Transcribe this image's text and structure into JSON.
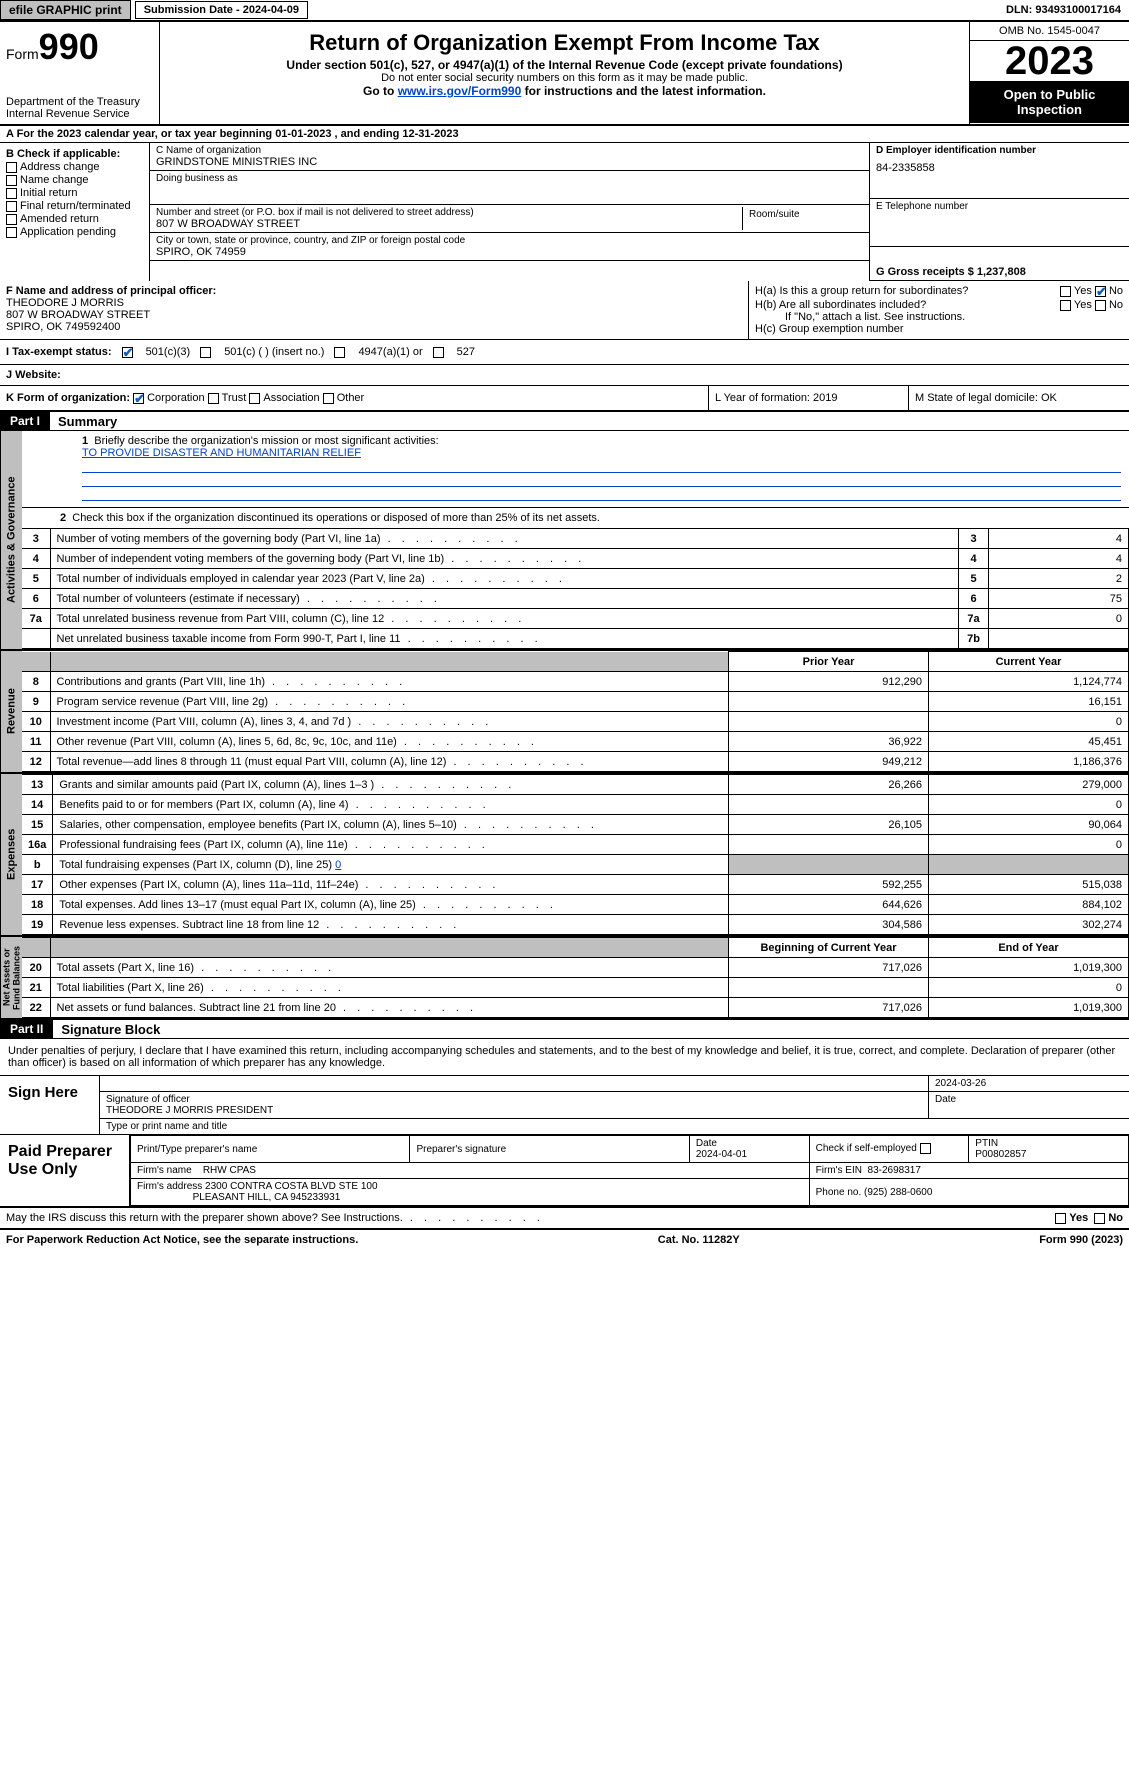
{
  "topbar": {
    "efile": "efile GRAPHIC print",
    "submission_label": "Submission Date - 2024-04-09",
    "dln": "DLN: 93493100017164"
  },
  "header": {
    "form_word": "Form",
    "form_num": "990",
    "dept": "Department of the Treasury",
    "irs": "Internal Revenue Service",
    "title": "Return of Organization Exempt From Income Tax",
    "sub1": "Under section 501(c), 527, or 4947(a)(1) of the Internal Revenue Code (except private foundations)",
    "sub2": "Do not enter social security numbers on this form as it may be made public.",
    "sub3_prefix": "Go to ",
    "sub3_link": "www.irs.gov/Form990",
    "sub3_suffix": " for instructions and the latest information.",
    "omb": "OMB No. 1545-0047",
    "year": "2023",
    "open": "Open to Public Inspection"
  },
  "row_a": "A For the 2023 calendar year, or tax year beginning 01-01-2023  , and ending 12-31-2023",
  "col_b": {
    "header": "B Check if applicable:",
    "items": [
      "Address change",
      "Name change",
      "Initial return",
      "Final return/terminated",
      "Amended return",
      "Application pending"
    ]
  },
  "col_c": {
    "name_label": "C Name of organization",
    "name": "GRINDSTONE MINISTRIES INC",
    "dba_label": "Doing business as",
    "street_label": "Number and street (or P.O. box if mail is not delivered to street address)",
    "street": "807 W BROADWAY STREET",
    "room_label": "Room/suite",
    "city_label": "City or town, state or province, country, and ZIP or foreign postal code",
    "city": "SPIRO, OK   74959"
  },
  "col_d": {
    "ein_label": "D Employer identification number",
    "ein": "84-2335858",
    "phone_label": "E Telephone number",
    "gross_label": "G Gross receipts $ 1,237,808"
  },
  "f": {
    "label": "F  Name and address of principal officer:",
    "line1": "THEODORE J MORRIS",
    "line2": "807 W BROADWAY STREET",
    "line3": "SPIRO, OK   749592400"
  },
  "h": {
    "a_label": "H(a)  Is this a group return for subordinates?",
    "b_label": "H(b)  Are all subordinates included?",
    "b_note": "If \"No,\" attach a list. See instructions.",
    "c_label": "H(c)  Group exemption number",
    "yes": "Yes",
    "no": "No"
  },
  "status": {
    "i_label": "I  Tax-exempt status:",
    "c3": "501(c)(3)",
    "c_insert": "501(c) (  ) (insert no.)",
    "a1": "4947(a)(1) or",
    "s527": "527"
  },
  "j": {
    "label": "J  Website:"
  },
  "k": {
    "label": "K Form of organization:",
    "corp": "Corporation",
    "trust": "Trust",
    "assoc": "Association",
    "other": "Other",
    "l": "L Year of formation: 2019",
    "m": "M State of legal domicile: OK"
  },
  "parts": {
    "p1": "Part I",
    "p1_title": "Summary",
    "p2": "Part II",
    "p2_title": "Signature Block"
  },
  "summary": {
    "q1": "Briefly describe the organization's mission or most significant activities:",
    "mission": "TO PROVIDE DISASTER AND HUMANITARIAN RELIEF",
    "q2": "Check this box      if the organization discontinued its operations or disposed of more than 25% of its net assets.",
    "prior_year": "Prior Year",
    "current_year": "Current Year",
    "beg_year": "Beginning of Current Year",
    "end_year": "End of Year"
  },
  "gov_lines": [
    {
      "n": "3",
      "d": "Number of voting members of the governing body (Part VI, line 1a)",
      "ln": "3",
      "v": "4"
    },
    {
      "n": "4",
      "d": "Number of independent voting members of the governing body (Part VI, line 1b)",
      "ln": "4",
      "v": "4"
    },
    {
      "n": "5",
      "d": "Total number of individuals employed in calendar year 2023 (Part V, line 2a)",
      "ln": "5",
      "v": "2"
    },
    {
      "n": "6",
      "d": "Total number of volunteers (estimate if necessary)",
      "ln": "6",
      "v": "75"
    },
    {
      "n": "7a",
      "d": "Total unrelated business revenue from Part VIII, column (C), line 12",
      "ln": "7a",
      "v": "0"
    },
    {
      "n": "",
      "d": "Net unrelated business taxable income from Form 990-T, Part I, line 11",
      "ln": "7b",
      "v": ""
    }
  ],
  "rev_lines": [
    {
      "n": "8",
      "d": "Contributions and grants (Part VIII, line 1h)",
      "py": "912,290",
      "cy": "1,124,774"
    },
    {
      "n": "9",
      "d": "Program service revenue (Part VIII, line 2g)",
      "py": "",
      "cy": "16,151"
    },
    {
      "n": "10",
      "d": "Investment income (Part VIII, column (A), lines 3, 4, and 7d )",
      "py": "",
      "cy": "0"
    },
    {
      "n": "11",
      "d": "Other revenue (Part VIII, column (A), lines 5, 6d, 8c, 9c, 10c, and 11e)",
      "py": "36,922",
      "cy": "45,451"
    },
    {
      "n": "12",
      "d": "Total revenue—add lines 8 through 11 (must equal Part VIII, column (A), line 12)",
      "py": "949,212",
      "cy": "1,186,376"
    }
  ],
  "exp_lines": [
    {
      "n": "13",
      "d": "Grants and similar amounts paid (Part IX, column (A), lines 1–3 )",
      "py": "26,266",
      "cy": "279,000"
    },
    {
      "n": "14",
      "d": "Benefits paid to or for members (Part IX, column (A), line 4)",
      "py": "",
      "cy": "0"
    },
    {
      "n": "15",
      "d": "Salaries, other compensation, employee benefits (Part IX, column (A), lines 5–10)",
      "py": "26,105",
      "cy": "90,064"
    },
    {
      "n": "16a",
      "d": "Professional fundraising fees (Part IX, column (A), line 11e)",
      "py": "",
      "cy": "0"
    },
    {
      "n": "b",
      "d": "Total fundraising expenses (Part IX, column (D), line 25) 0",
      "py": "shade",
      "cy": "shade"
    },
    {
      "n": "17",
      "d": "Other expenses (Part IX, column (A), lines 11a–11d, 11f–24e)",
      "py": "592,255",
      "cy": "515,038"
    },
    {
      "n": "18",
      "d": "Total expenses. Add lines 13–17 (must equal Part IX, column (A), line 25)",
      "py": "644,626",
      "cy": "884,102"
    },
    {
      "n": "19",
      "d": "Revenue less expenses. Subtract line 18 from line 12",
      "py": "304,586",
      "cy": "302,274"
    }
  ],
  "net_lines": [
    {
      "n": "20",
      "d": "Total assets (Part X, line 16)",
      "py": "717,026",
      "cy": "1,019,300"
    },
    {
      "n": "21",
      "d": "Total liabilities (Part X, line 26)",
      "py": "",
      "cy": "0"
    },
    {
      "n": "22",
      "d": "Net assets or fund balances. Subtract line 21 from line 20",
      "py": "717,026",
      "cy": "1,019,300"
    }
  ],
  "vtabs": {
    "gov": "Activities & Governance",
    "rev": "Revenue",
    "exp": "Expenses",
    "net": "Net Assets or Fund Balances"
  },
  "sig": {
    "intro": "Under penalties of perjury, I declare that I have examined this return, including accompanying schedules and statements, and to the best of my knowledge and belief, it is true, correct, and complete. Declaration of preparer (other than officer) is based on all information of which preparer has any knowledge.",
    "sign_here": "Sign Here",
    "sig_officer_label": "Signature of officer",
    "officer": "THEODORE J MORRIS  PRESIDENT",
    "type_label": "Type or print name and title",
    "date_label": "Date",
    "date": "2024-03-26"
  },
  "prep": {
    "header": "Paid Preparer Use Only",
    "print_label": "Print/Type preparer's name",
    "sig_label": "Preparer's signature",
    "pdate_label": "Date",
    "pdate": "2024-04-01",
    "check_label": "Check        if self-employed",
    "ptin_label": "PTIN",
    "ptin": "P00802857",
    "firm_name_label": "Firm's name",
    "firm_name": "RHW CPAS",
    "firm_ein_label": "Firm's EIN",
    "firm_ein": "83-2698317",
    "firm_addr_label": "Firm's address",
    "firm_addr1": "2300 CONTRA COSTA BLVD STE 100",
    "firm_addr2": "PLEASANT HILL, CA   945233931",
    "phone_label": "Phone no.",
    "phone": "(925) 288-0600"
  },
  "discuss": {
    "text": "May the IRS discuss this return with the preparer shown above? See Instructions.",
    "yes": "Yes",
    "no": "No"
  },
  "footer": {
    "left": "For Paperwork Reduction Act Notice, see the separate instructions.",
    "mid": "Cat. No. 11282Y",
    "right_prefix": "Form ",
    "right_form": "990",
    "right_suffix": " (2023)"
  }
}
